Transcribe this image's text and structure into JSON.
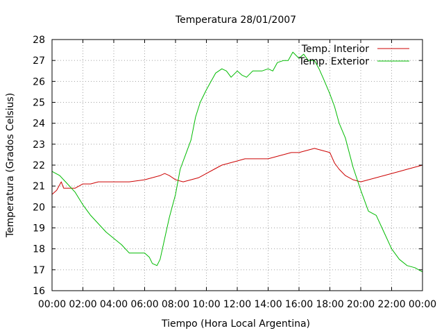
{
  "chart_data": {
    "type": "line",
    "title": "Temperatura 28/01/2007",
    "xlabel": "Tiempo (Hora Local Argentina)",
    "ylabel": "Temperatura (Grados Celsius)",
    "xlim": [
      0,
      24
    ],
    "ylim": [
      16,
      28
    ],
    "grid": true,
    "legend_position": "top-right",
    "x_ticks": [
      "00:00",
      "02:00",
      "04:00",
      "06:00",
      "08:00",
      "10:00",
      "12:00",
      "14:00",
      "16:00",
      "18:00",
      "20:00",
      "22:00",
      "00:00"
    ],
    "y_ticks": [
      "16",
      "17",
      "18",
      "19",
      "20",
      "21",
      "22",
      "23",
      "24",
      "25",
      "26",
      "27",
      "28"
    ],
    "series": [
      {
        "name": "Temp. Interior",
        "color": "#cc0000",
        "x": [
          0.0,
          0.3,
          0.6,
          0.75,
          0.9,
          1.2,
          1.5,
          2.0,
          2.5,
          3.0,
          4.0,
          5.0,
          6.0,
          6.5,
          7.0,
          7.3,
          7.6,
          8.0,
          8.5,
          9.0,
          9.5,
          10.0,
          10.5,
          11.0,
          11.5,
          12.0,
          12.5,
          13.0,
          13.5,
          14.0,
          14.5,
          15.0,
          15.5,
          16.0,
          16.5,
          17.0,
          17.5,
          18.0,
          18.3,
          18.6,
          19.0,
          19.5,
          20.0,
          20.5,
          21.0,
          21.5,
          22.0,
          22.5,
          23.0,
          23.5,
          24.0
        ],
        "y": [
          20.6,
          20.8,
          21.2,
          20.9,
          20.9,
          20.9,
          20.9,
          21.1,
          21.1,
          21.2,
          21.2,
          21.2,
          21.3,
          21.4,
          21.5,
          21.6,
          21.5,
          21.3,
          21.2,
          21.3,
          21.4,
          21.6,
          21.8,
          22.0,
          22.1,
          22.2,
          22.3,
          22.3,
          22.3,
          22.3,
          22.4,
          22.5,
          22.6,
          22.6,
          22.7,
          22.8,
          22.7,
          22.6,
          22.1,
          21.8,
          21.5,
          21.3,
          21.2,
          21.3,
          21.4,
          21.5,
          21.6,
          21.7,
          21.8,
          21.9,
          22.0
        ]
      },
      {
        "name": "Temp. Exterior",
        "color": "#00bb00",
        "x": [
          0.0,
          0.5,
          1.0,
          1.5,
          2.0,
          2.5,
          3.0,
          3.5,
          4.0,
          4.5,
          5.0,
          5.5,
          6.0,
          6.3,
          6.5,
          6.8,
          7.0,
          7.3,
          7.6,
          8.0,
          8.3,
          8.6,
          9.0,
          9.3,
          9.6,
          10.0,
          10.3,
          10.6,
          11.0,
          11.3,
          11.6,
          12.0,
          12.3,
          12.6,
          13.0,
          13.3,
          13.6,
          14.0,
          14.3,
          14.6,
          15.0,
          15.3,
          15.6,
          16.0,
          16.3,
          16.6,
          17.0,
          17.3,
          17.6,
          18.0,
          18.3,
          18.6,
          19.0,
          19.5,
          20.0,
          20.5,
          21.0,
          21.5,
          22.0,
          22.5,
          23.0,
          23.5,
          24.0
        ],
        "y": [
          21.7,
          21.5,
          21.1,
          20.7,
          20.1,
          19.6,
          19.2,
          18.8,
          18.5,
          18.2,
          17.8,
          17.8,
          17.8,
          17.6,
          17.3,
          17.2,
          17.5,
          18.5,
          19.5,
          20.6,
          21.8,
          22.4,
          23.2,
          24.3,
          25.0,
          25.6,
          26.0,
          26.4,
          26.6,
          26.5,
          26.2,
          26.5,
          26.3,
          26.2,
          26.5,
          26.5,
          26.5,
          26.6,
          26.5,
          26.9,
          27.0,
          27.0,
          27.4,
          27.1,
          27.3,
          27.0,
          27.0,
          26.6,
          26.1,
          25.4,
          24.8,
          24.0,
          23.3,
          21.9,
          20.8,
          19.8,
          19.6,
          18.8,
          18.0,
          17.5,
          17.2,
          17.1,
          16.9
        ]
      }
    ]
  }
}
